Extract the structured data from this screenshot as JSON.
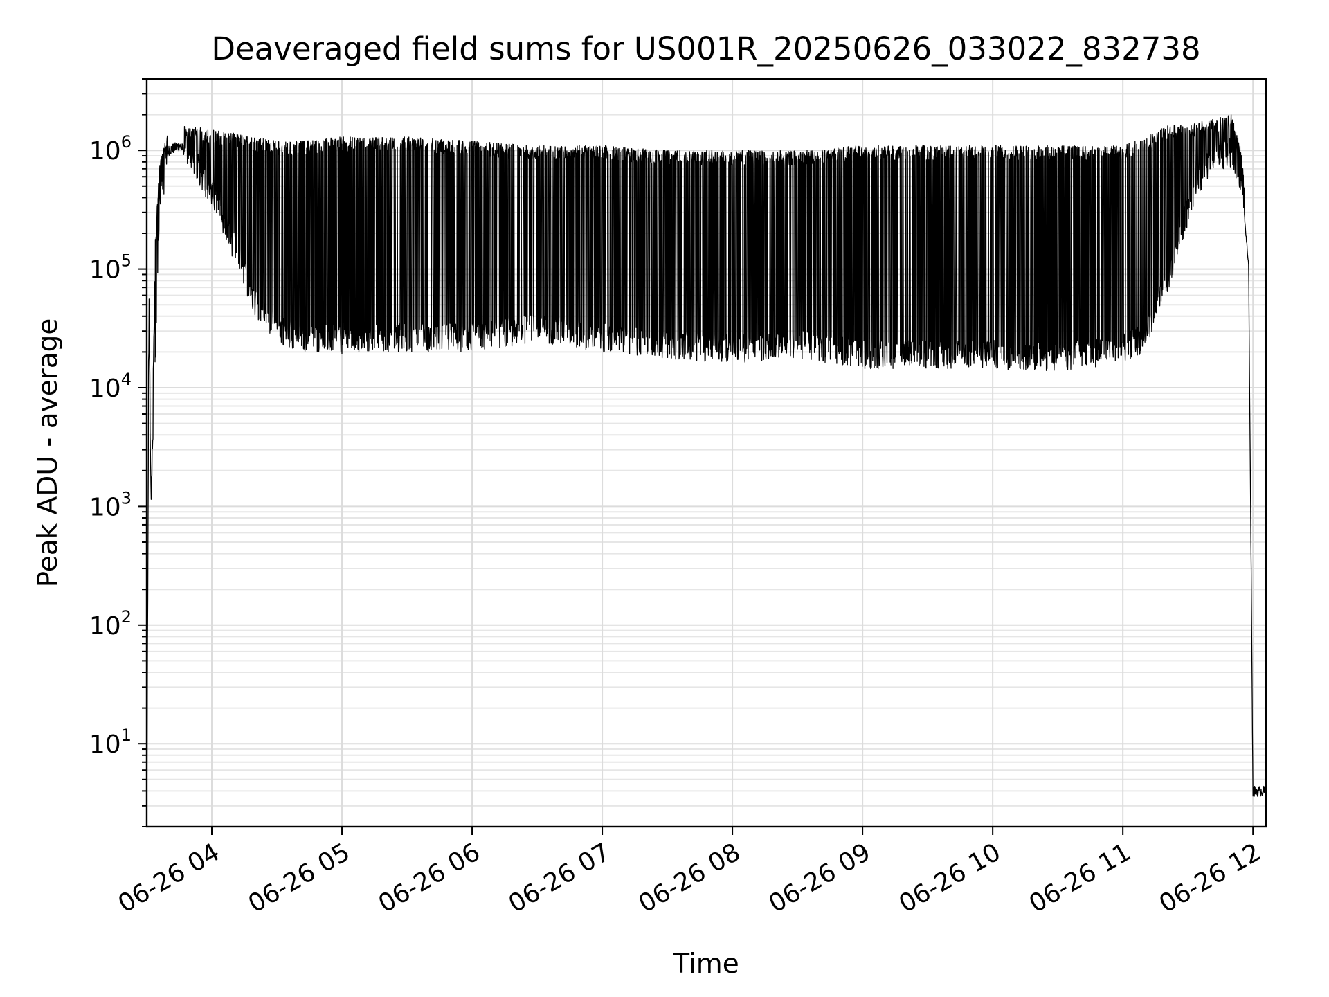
{
  "chart_data": {
    "type": "line",
    "title": "Deaveraged field sums for US001R_20250626_033022_832738",
    "xlabel": "Time",
    "ylabel": "Peak ADU - average",
    "yscale": "log",
    "ylim": [
      2,
      4000000
    ],
    "xlim": [
      "06-26 03:30",
      "06-26 12:06"
    ],
    "grid": "both",
    "x_ticks": [
      "06-26 04",
      "06-26 05",
      "06-26 06",
      "06-26 07",
      "06-26 08",
      "06-26 09",
      "06-26 10",
      "06-26 11",
      "06-26 12"
    ],
    "y_ticks": [
      10,
      100,
      1000,
      10000,
      100000,
      1000000
    ],
    "series": [
      {
        "color": "#000000",
        "x": [
          "06-26 03:30",
          "06-26 03:31",
          "06-26 03:32",
          "06-26 03:34",
          "06-26 03:36",
          "06-26 03:40",
          "06-26 03:45",
          "06-26 03:50",
          "06-26 04:00",
          "06-26 04:10",
          "06-26 04:20",
          "06-26 04:30",
          "06-26 04:40",
          "06-26 05:00",
          "06-26 05:30",
          "06-26 06:00",
          "06-26 06:30",
          "06-26 07:00",
          "06-26 07:30",
          "06-26 08:00",
          "06-26 08:30",
          "06-26 09:00",
          "06-26 09:30",
          "06-26 10:00",
          "06-26 10:30",
          "06-26 11:00",
          "06-26 11:10",
          "06-26 11:20",
          "06-26 11:30",
          "06-26 11:40",
          "06-26 11:50",
          "06-26 11:55",
          "06-26 11:58",
          "06-26 12:00",
          "06-26 12:06"
        ],
        "y_baseline": [
          2,
          25000,
          1100,
          20000,
          300000,
          1000000,
          1100000,
          900000,
          400000,
          150000,
          50000,
          30000,
          25000,
          24000,
          25000,
          25000,
          30000,
          25000,
          22000,
          20000,
          22000,
          18000,
          18000,
          18000,
          17000,
          20000,
          25000,
          70000,
          300000,
          800000,
          900000,
          500000,
          100000,
          4,
          4
        ],
        "y_peak": [
          2,
          100000,
          1100,
          200000,
          800000,
          1500000,
          1600000,
          1600000,
          1500000,
          1400000,
          1300000,
          1200000,
          1200000,
          1300000,
          1300000,
          1200000,
          1100000,
          1100000,
          1000000,
          1000000,
          1000000,
          1100000,
          1100000,
          1100000,
          1100000,
          1100000,
          1300000,
          1600000,
          1700000,
          1800000,
          2000000,
          1000000,
          100000,
          4,
          4
        ]
      }
    ]
  }
}
